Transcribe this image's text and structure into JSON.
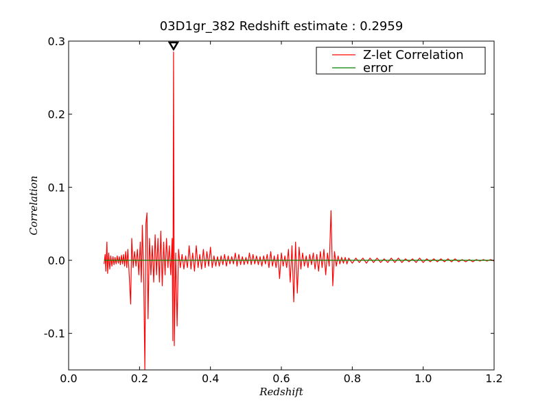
{
  "chart_data": {
    "type": "line",
    "title": "03D1gr_382 Redshift estimate : 0.2959",
    "xlabel": "Redshift",
    "ylabel": "Correlation",
    "xlim": [
      0.0,
      1.2
    ],
    "ylim": [
      -0.15,
      0.3
    ],
    "xticks": [
      0.0,
      0.2,
      0.4,
      0.6,
      0.8,
      1.0,
      1.2
    ],
    "xtick_labels": [
      "0.0",
      "0.2",
      "0.4",
      "0.6",
      "0.8",
      "1.0",
      "1.2"
    ],
    "yticks": [
      -0.1,
      0.0,
      0.1,
      0.2,
      0.3
    ],
    "ytick_labels": [
      "-0.1",
      "0.0",
      "0.1",
      "0.2",
      "0.3"
    ],
    "legend_position": "top-right",
    "grid": false,
    "marker": {
      "x": 0.2959,
      "y": 0.285,
      "shape": "triangle-down"
    },
    "series": [
      {
        "name": "Z-let Correlation",
        "color": "#ff0000",
        "points": [
          [
            0.1,
            -0.005
          ],
          [
            0.103,
            0.008
          ],
          [
            0.105,
            -0.015
          ],
          [
            0.108,
            0.025
          ],
          [
            0.11,
            -0.018
          ],
          [
            0.113,
            0.01
          ],
          [
            0.116,
            -0.012
          ],
          [
            0.119,
            0.006
          ],
          [
            0.122,
            -0.008
          ],
          [
            0.125,
            0.005
          ],
          [
            0.128,
            -0.006
          ],
          [
            0.131,
            0.004
          ],
          [
            0.134,
            -0.005
          ],
          [
            0.137,
            0.006
          ],
          [
            0.14,
            -0.004
          ],
          [
            0.143,
            0.005
          ],
          [
            0.146,
            -0.006
          ],
          [
            0.149,
            0.007
          ],
          [
            0.152,
            -0.005
          ],
          [
            0.155,
            0.008
          ],
          [
            0.158,
            -0.008
          ],
          [
            0.161,
            0.012
          ],
          [
            0.164,
            -0.01
          ],
          [
            0.167,
            0.015
          ],
          [
            0.17,
            -0.012
          ],
          [
            0.175,
            -0.06
          ],
          [
            0.178,
            0.03
          ],
          [
            0.182,
            -0.01
          ],
          [
            0.186,
            0.012
          ],
          [
            0.19,
            -0.008
          ],
          [
            0.194,
            0.015
          ],
          [
            0.198,
            -0.02
          ],
          [
            0.202,
            0.025
          ],
          [
            0.205,
            -0.03
          ],
          [
            0.208,
            0.048
          ],
          [
            0.212,
            -0.03
          ],
          [
            0.215,
            -0.15
          ],
          [
            0.218,
            0.05
          ],
          [
            0.221,
            0.065
          ],
          [
            0.224,
            -0.08
          ],
          [
            0.228,
            0.03
          ],
          [
            0.232,
            -0.02
          ],
          [
            0.236,
            0.02
          ],
          [
            0.24,
            -0.03
          ],
          [
            0.244,
            0.035
          ],
          [
            0.248,
            -0.02
          ],
          [
            0.252,
            0.03
          ],
          [
            0.256,
            -0.03
          ],
          [
            0.26,
            0.04
          ],
          [
            0.264,
            -0.035
          ],
          [
            0.268,
            0.025
          ],
          [
            0.272,
            -0.02
          ],
          [
            0.276,
            0.03
          ],
          [
            0.28,
            -0.01
          ],
          [
            0.284,
            0.02
          ],
          [
            0.288,
            -0.02
          ],
          [
            0.292,
            0.03
          ],
          [
            0.294,
            -0.11
          ],
          [
            0.2959,
            0.285
          ],
          [
            0.298,
            -0.117
          ],
          [
            0.302,
            0.01
          ],
          [
            0.306,
            -0.09
          ],
          [
            0.31,
            0.015
          ],
          [
            0.315,
            -0.01
          ],
          [
            0.32,
            0.008
          ],
          [
            0.325,
            -0.012
          ],
          [
            0.33,
            0.006
          ],
          [
            0.335,
            -0.01
          ],
          [
            0.34,
            0.02
          ],
          [
            0.345,
            -0.012
          ],
          [
            0.35,
            0.01
          ],
          [
            0.355,
            -0.015
          ],
          [
            0.36,
            0.02
          ],
          [
            0.365,
            -0.01
          ],
          [
            0.37,
            0.008
          ],
          [
            0.375,
            -0.012
          ],
          [
            0.38,
            0.015
          ],
          [
            0.385,
            -0.01
          ],
          [
            0.39,
            0.012
          ],
          [
            0.395,
            -0.008
          ],
          [
            0.4,
            0.018
          ],
          [
            0.405,
            -0.01
          ],
          [
            0.41,
            0.006
          ],
          [
            0.415,
            -0.008
          ],
          [
            0.42,
            0.005
          ],
          [
            0.425,
            -0.008
          ],
          [
            0.43,
            0.006
          ],
          [
            0.435,
            -0.006
          ],
          [
            0.44,
            0.008
          ],
          [
            0.445,
            -0.008
          ],
          [
            0.45,
            0.006
          ],
          [
            0.455,
            -0.005
          ],
          [
            0.46,
            0.005
          ],
          [
            0.465,
            -0.005
          ],
          [
            0.47,
            0.01
          ],
          [
            0.475,
            -0.008
          ],
          [
            0.48,
            0.008
          ],
          [
            0.485,
            -0.006
          ],
          [
            0.49,
            0.005
          ],
          [
            0.495,
            -0.006
          ],
          [
            0.5,
            0.004
          ],
          [
            0.505,
            -0.005
          ],
          [
            0.51,
            0.01
          ],
          [
            0.515,
            -0.006
          ],
          [
            0.52,
            0.008
          ],
          [
            0.525,
            -0.005
          ],
          [
            0.53,
            0.006
          ],
          [
            0.535,
            -0.006
          ],
          [
            0.54,
            0.005
          ],
          [
            0.545,
            -0.008
          ],
          [
            0.55,
            0.006
          ],
          [
            0.555,
            -0.005
          ],
          [
            0.56,
            0.008
          ],
          [
            0.565,
            -0.01
          ],
          [
            0.57,
            0.012
          ],
          [
            0.575,
            -0.008
          ],
          [
            0.58,
            0.006
          ],
          [
            0.585,
            -0.01
          ],
          [
            0.59,
            0.008
          ],
          [
            0.595,
            -0.025
          ],
          [
            0.6,
            0.01
          ],
          [
            0.605,
            -0.008
          ],
          [
            0.61,
            0.006
          ],
          [
            0.615,
            -0.01
          ],
          [
            0.62,
            0.015
          ],
          [
            0.625,
            -0.03
          ],
          [
            0.63,
            0.02
          ],
          [
            0.635,
            -0.057
          ],
          [
            0.64,
            0.025
          ],
          [
            0.645,
            -0.045
          ],
          [
            0.65,
            0.018
          ],
          [
            0.655,
            -0.012
          ],
          [
            0.66,
            0.01
          ],
          [
            0.665,
            -0.008
          ],
          [
            0.67,
            0.006
          ],
          [
            0.675,
            -0.01
          ],
          [
            0.68,
            0.008
          ],
          [
            0.685,
            -0.006
          ],
          [
            0.69,
            0.01
          ],
          [
            0.695,
            -0.012
          ],
          [
            0.7,
            0.008
          ],
          [
            0.705,
            -0.015
          ],
          [
            0.71,
            0.012
          ],
          [
            0.715,
            -0.01
          ],
          [
            0.72,
            0.015
          ],
          [
            0.725,
            -0.02
          ],
          [
            0.73,
            0.01
          ],
          [
            0.735,
            -0.008
          ],
          [
            0.74,
            0.068
          ],
          [
            0.745,
            -0.035
          ],
          [
            0.75,
            0.012
          ],
          [
            0.755,
            -0.008
          ],
          [
            0.76,
            0.006
          ],
          [
            0.765,
            -0.005
          ],
          [
            0.77,
            0.004
          ],
          [
            0.775,
            -0.004
          ],
          [
            0.78,
            0.004
          ],
          [
            0.785,
            -0.005
          ],
          [
            0.79,
            0.003
          ],
          [
            0.8,
            -0.004
          ],
          [
            0.81,
            0.003
          ],
          [
            0.82,
            -0.003
          ],
          [
            0.83,
            0.003
          ],
          [
            0.84,
            -0.004
          ],
          [
            0.85,
            0.003
          ],
          [
            0.86,
            -0.003
          ],
          [
            0.87,
            0.003
          ],
          [
            0.88,
            -0.003
          ],
          [
            0.89,
            0.002
          ],
          [
            0.9,
            -0.003
          ],
          [
            0.91,
            0.003
          ],
          [
            0.92,
            -0.003
          ],
          [
            0.93,
            0.003
          ],
          [
            0.94,
            -0.003
          ],
          [
            0.95,
            0.002
          ],
          [
            0.96,
            -0.002
          ],
          [
            0.97,
            0.002
          ],
          [
            0.98,
            -0.003
          ],
          [
            0.99,
            0.003
          ],
          [
            1.0,
            -0.003
          ],
          [
            1.01,
            0.002
          ],
          [
            1.02,
            -0.002
          ],
          [
            1.03,
            0.002
          ],
          [
            1.04,
            -0.002
          ],
          [
            1.05,
            0.002
          ],
          [
            1.06,
            -0.002
          ],
          [
            1.07,
            0.002
          ],
          [
            1.08,
            -0.002
          ],
          [
            1.09,
            0.002
          ],
          [
            1.1,
            -0.002
          ],
          [
            1.11,
            0.001
          ],
          [
            1.12,
            -0.002
          ],
          [
            1.13,
            0.001
          ],
          [
            1.14,
            -0.002
          ],
          [
            1.15,
            0.001
          ],
          [
            1.16,
            -0.001
          ],
          [
            1.17,
            0.001
          ],
          [
            1.18,
            -0.001
          ],
          [
            1.19,
            0.001
          ],
          [
            1.2,
            -0.001
          ]
        ]
      },
      {
        "name": "error",
        "color": "#008000",
        "points": [
          [
            0.1,
            0.0
          ],
          [
            1.2,
            0.0
          ]
        ]
      }
    ]
  }
}
